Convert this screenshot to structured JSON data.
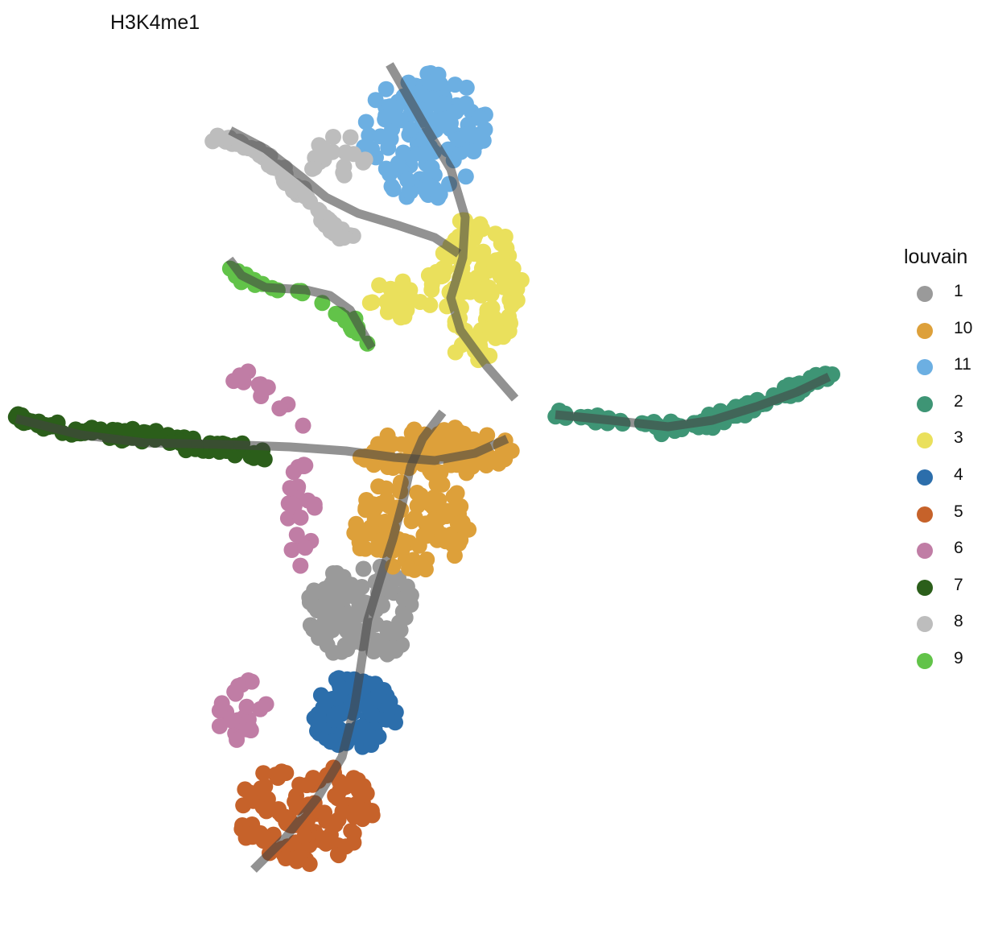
{
  "chart_data": {
    "type": "scatter",
    "title": "H3K4me1",
    "legend": {
      "title": "louvain",
      "position": "right"
    },
    "grid": false,
    "axes": "none",
    "series": [
      {
        "name": "1",
        "color": "#9A9A9A",
        "clusters": [
          {
            "cx": 450,
            "cy": 760,
            "rx": 70,
            "ry": 60,
            "n": 110
          }
        ]
      },
      {
        "name": "10",
        "color": "#DDA03A",
        "clusters": [
          {
            "cx": 540,
            "cy": 560,
            "rx": 100,
            "ry": 30,
            "n": 100
          },
          {
            "cx": 510,
            "cy": 650,
            "rx": 75,
            "ry": 60,
            "n": 90
          }
        ]
      },
      {
        "name": "11",
        "color": "#6CAFE2",
        "clusters": [
          {
            "cx": 530,
            "cy": 170,
            "rx": 80,
            "ry": 80,
            "n": 130
          }
        ]
      },
      {
        "name": "2",
        "color": "#3E9575",
        "path": [
          [
            690,
            515
          ],
          [
            760,
            522
          ],
          [
            830,
            532
          ],
          [
            880,
            525
          ],
          [
            930,
            505
          ],
          [
            980,
            485
          ],
          [
            1030,
            465
          ]
        ],
        "n": 90
      },
      {
        "name": "3",
        "color": "#EAE05C",
        "clusters": [
          {
            "cx": 590,
            "cy": 360,
            "rx": 60,
            "ry": 90,
            "n": 120
          },
          {
            "cx": 490,
            "cy": 370,
            "rx": 35,
            "ry": 25,
            "n": 20
          }
        ]
      },
      {
        "name": "4",
        "color": "#2C6EAB",
        "clusters": [
          {
            "cx": 440,
            "cy": 885,
            "rx": 55,
            "ry": 50,
            "n": 95
          }
        ]
      },
      {
        "name": "5",
        "color": "#C6622A",
        "clusters": [
          {
            "cx": 380,
            "cy": 1010,
            "rx": 85,
            "ry": 65,
            "n": 120
          }
        ]
      },
      {
        "name": "6",
        "color": "#C07DA5",
        "path": [
          [
            285,
            465
          ],
          [
            320,
            475
          ],
          [
            350,
            500
          ],
          [
            380,
            530
          ]
        ],
        "n": 14,
        "clusters": [
          {
            "cx": 375,
            "cy": 640,
            "rx": 22,
            "ry": 65,
            "n": 22
          },
          {
            "cx": 300,
            "cy": 880,
            "rx": 32,
            "ry": 45,
            "n": 25
          }
        ]
      },
      {
        "name": "7",
        "color": "#2B5E1A",
        "path": [
          [
            20,
            518
          ],
          [
            90,
            535
          ],
          [
            150,
            540
          ],
          [
            210,
            545
          ],
          [
            260,
            555
          ],
          [
            330,
            565
          ]
        ],
        "n": 110
      },
      {
        "name": "8",
        "color": "#BDBDBD",
        "path": [
          [
            270,
            172
          ],
          [
            310,
            180
          ],
          [
            350,
            215
          ],
          [
            380,
            245
          ],
          [
            410,
            280
          ],
          [
            440,
            300
          ]
        ],
        "n": 80,
        "clusters": [
          {
            "cx": 420,
            "cy": 195,
            "rx": 40,
            "ry": 30,
            "n": 20
          }
        ]
      },
      {
        "name": "9",
        "color": "#62C349",
        "path": [
          [
            283,
            335
          ],
          [
            320,
            352
          ],
          [
            370,
            360
          ],
          [
            400,
            378
          ],
          [
            440,
            405
          ],
          [
            460,
            430
          ]
        ],
        "n": 28
      }
    ],
    "trajectories": [
      {
        "color": "#444444",
        "opacity": 0.58,
        "points": [
          [
            484,
            80
          ],
          [
            530,
            160
          ],
          [
            560,
            210
          ],
          [
            578,
            270
          ],
          [
            575,
            320
          ],
          [
            560,
            370
          ],
          [
            572,
            410
          ],
          [
            605,
            455
          ],
          [
            640,
            495
          ]
        ]
      },
      {
        "color": "#444444",
        "opacity": 0.58,
        "points": [
          [
            286,
            162
          ],
          [
            330,
            185
          ],
          [
            375,
            220
          ],
          [
            405,
            245
          ],
          [
            445,
            265
          ],
          [
            495,
            280
          ],
          [
            540,
            295
          ],
          [
            570,
            315
          ]
        ]
      },
      {
        "color": "#444444",
        "opacity": 0.58,
        "points": [
          [
            285,
            322
          ],
          [
            300,
            342
          ],
          [
            330,
            357
          ],
          [
            380,
            360
          ],
          [
            410,
            367
          ],
          [
            435,
            385
          ],
          [
            448,
            408
          ],
          [
            462,
            432
          ]
        ]
      },
      {
        "color": "#444444",
        "opacity": 0.58,
        "points": [
          [
            20,
            520
          ],
          [
            100,
            540
          ],
          [
            180,
            550
          ],
          [
            280,
            552
          ],
          [
            360,
            555
          ],
          [
            430,
            560
          ],
          [
            490,
            568
          ],
          [
            540,
            572
          ],
          [
            590,
            563
          ],
          [
            630,
            545
          ]
        ]
      },
      {
        "color": "#444444",
        "opacity": 0.58,
        "points": [
          [
            690,
            515
          ],
          [
            760,
            522
          ],
          [
            830,
            530
          ],
          [
            885,
            522
          ],
          [
            940,
            505
          ],
          [
            990,
            487
          ],
          [
            1030,
            468
          ]
        ]
      },
      {
        "color": "#444444",
        "opacity": 0.58,
        "points": [
          [
            550,
            512
          ],
          [
            525,
            545
          ],
          [
            510,
            580
          ],
          [
            500,
            625
          ],
          [
            488,
            670
          ],
          [
            472,
            720
          ],
          [
            457,
            770
          ],
          [
            448,
            830
          ],
          [
            440,
            880
          ],
          [
            425,
            940
          ],
          [
            395,
            990
          ],
          [
            355,
            1040
          ],
          [
            315,
            1080
          ]
        ]
      }
    ]
  }
}
